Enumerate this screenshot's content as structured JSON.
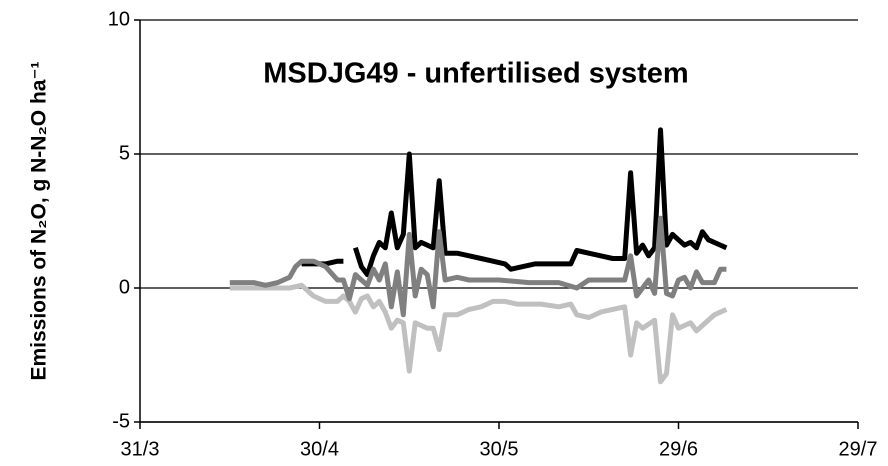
{
  "chart_data": {
    "type": "line",
    "title": "MSDJG49 - unfertilised system",
    "y_label": "Emissions of N₂O, g N-N₂O ha⁻¹",
    "xlim": [
      0,
      120
    ],
    "xticks": [
      {
        "value": 0,
        "label": "31/3"
      },
      {
        "value": 30,
        "label": "30/4"
      },
      {
        "value": 60,
        "label": "30/5"
      },
      {
        "value": 90,
        "label": "29/6"
      },
      {
        "value": 120,
        "label": "29/7"
      }
    ],
    "ylim": [
      -5,
      10
    ],
    "yticks": [
      -5,
      0,
      5,
      10
    ],
    "grid": true,
    "series": [
      {
        "color": "#c0c0c0",
        "x": [
          15,
          17,
          20,
          25,
          27,
          29,
          31,
          33,
          34,
          35,
          36,
          37,
          38,
          39,
          40,
          41,
          42,
          43,
          44,
          45,
          46,
          47,
          48,
          49,
          50,
          51,
          53,
          55,
          57,
          59,
          61,
          63,
          65,
          67,
          70,
          72,
          73,
          75,
          77,
          79,
          81,
          82,
          83,
          84,
          86,
          87,
          88,
          89,
          90,
          91,
          92,
          93,
          94,
          96,
          98
        ],
        "values": [
          0,
          0,
          0,
          0,
          0.1,
          -0.3,
          -0.5,
          -0.5,
          -0.3,
          -0.5,
          -0.9,
          -0.4,
          -0.3,
          -0.7,
          -0.5,
          -0.9,
          -1.5,
          -1.2,
          -1.3,
          -3.1,
          -1.3,
          -1.4,
          -1.5,
          -1.5,
          -2.3,
          -1.0,
          -1.0,
          -0.8,
          -0.7,
          -0.5,
          -0.5,
          -0.6,
          -0.6,
          -0.6,
          -0.7,
          -0.6,
          -1.0,
          -1.1,
          -0.9,
          -0.8,
          -0.7,
          -2.5,
          -1.3,
          -1.5,
          -1.2,
          -3.5,
          -3.2,
          -1.0,
          -1.5,
          -1.4,
          -1.3,
          -1.6,
          -1.4,
          -1.0,
          -0.8
        ]
      },
      {
        "color": "#000000",
        "x": [
          27,
          29,
          31,
          33,
          34,
          35,
          36,
          37,
          38,
          39,
          40,
          41,
          42,
          43,
          44,
          45,
          46,
          47,
          48,
          49,
          50,
          51,
          53,
          55,
          57,
          59,
          61,
          62,
          64,
          66,
          68,
          70,
          72,
          73,
          75,
          77,
          79,
          81,
          82,
          83,
          84,
          85,
          86,
          87,
          88,
          89,
          90,
          91,
          92,
          93,
          94,
          95,
          97,
          98
        ],
        "values": [
          0.9,
          0.9,
          0.9,
          1.0,
          1.0,
          null,
          1.5,
          0.8,
          0.5,
          1.2,
          1.7,
          1.5,
          2.8,
          1.5,
          2.0,
          5.0,
          1.5,
          1.7,
          1.6,
          1.5,
          4.0,
          1.3,
          1.3,
          1.2,
          1.1,
          1.0,
          0.9,
          0.7,
          0.8,
          0.9,
          0.9,
          0.9,
          0.9,
          1.4,
          1.3,
          1.2,
          1.1,
          1.1,
          4.3,
          1.3,
          1.6,
          1.2,
          1.5,
          5.9,
          1.6,
          2.0,
          1.8,
          1.6,
          1.7,
          1.5,
          2.1,
          1.8,
          1.6,
          1.5
        ]
      },
      {
        "color": "#808080",
        "x": [
          15,
          17,
          19,
          21,
          23,
          25,
          26,
          27,
          29,
          31,
          33,
          34,
          35,
          36,
          37,
          38,
          39,
          40,
          41,
          42,
          43,
          44,
          45,
          46,
          47,
          48,
          49,
          50,
          51,
          53,
          55,
          60,
          65,
          70,
          73,
          75,
          80,
          81,
          82,
          83,
          85,
          86,
          87,
          88,
          89,
          90,
          91,
          92,
          93,
          94,
          96,
          97,
          98
        ],
        "values": [
          0.2,
          0.2,
          0.2,
          0.1,
          0.2,
          0.4,
          0.8,
          1.0,
          1.0,
          0.8,
          0.3,
          0.3,
          -0.4,
          0.5,
          0.3,
          0.1,
          0.7,
          0.3,
          0.9,
          -0.7,
          0.6,
          -1.0,
          2.0,
          -0.3,
          0.7,
          0.5,
          -0.7,
          2.1,
          0.3,
          0.4,
          0.3,
          0.3,
          0.2,
          0.2,
          0.0,
          0.3,
          0.3,
          0.3,
          1.2,
          -0.3,
          0.3,
          -0.2,
          2.6,
          -0.2,
          -0.3,
          0.3,
          0.4,
          0.0,
          0.6,
          0.2,
          0.2,
          0.7,
          0.7
        ]
      }
    ]
  }
}
